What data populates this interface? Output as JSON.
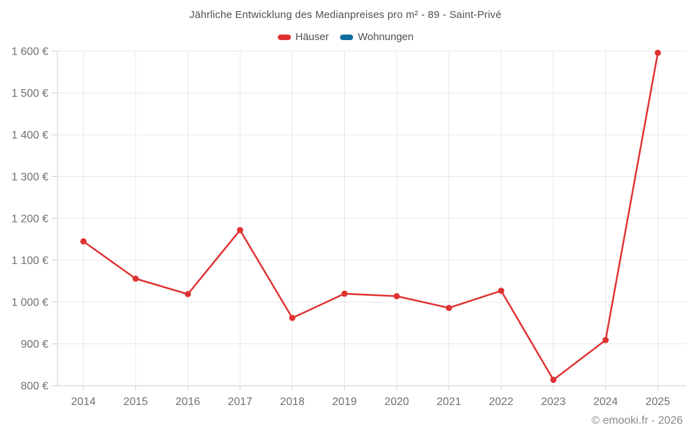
{
  "title": "Jährliche Entwicklung des Medianpreises pro m² - 89 - Saint-Privé",
  "footer": "© emooki.fr - 2026",
  "colors": {
    "haeuser": "#e03131",
    "wohnungen": "#116c9e",
    "grid": "#e7e7e7",
    "axis": "#cccccc",
    "tick_text": "#707070",
    "title_text": "#4f4f4f",
    "footer_text": "#8a8a8a"
  },
  "chart_data": {
    "type": "line",
    "title": "Jährliche Entwicklung des Medianpreises pro m² - 89 - Saint-Privé",
    "categories": [
      "2014",
      "2015",
      "2016",
      "2017",
      "2018",
      "2019",
      "2020",
      "2021",
      "2022",
      "2023",
      "2024",
      "2025"
    ],
    "series": [
      {
        "name": "Häuser",
        "color_key": "haeuser",
        "values": [
          1145,
          1056,
          1019,
          1172,
          962,
          1020,
          1014,
          986,
          1027,
          814,
          909,
          1596
        ]
      },
      {
        "name": "Wohnungen",
        "color_key": "wohnungen",
        "values": []
      }
    ],
    "xlabel": "",
    "ylabel": "",
    "ylim": [
      800,
      1600
    ],
    "ytick_step": 100,
    "ytick_labels": [
      "800 €",
      "900 €",
      "1 000 €",
      "1 100 €",
      "1 200 €",
      "1 300 €",
      "1 400 €",
      "1 500 €",
      "1 600 €"
    ],
    "grid": true,
    "legend_position": "top",
    "y_unit": "€"
  }
}
